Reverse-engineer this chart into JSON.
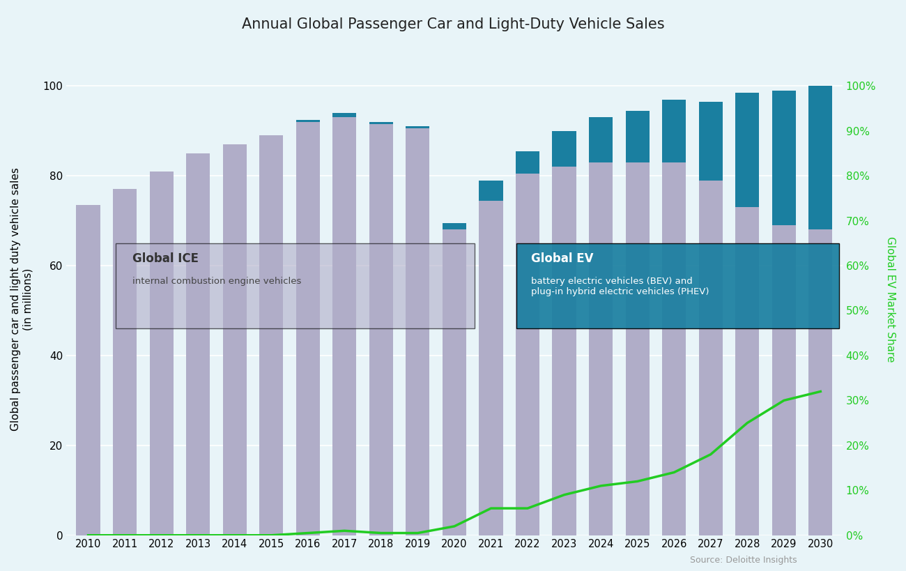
{
  "years": [
    2010,
    2011,
    2012,
    2013,
    2014,
    2015,
    2016,
    2017,
    2018,
    2019,
    2020,
    2021,
    2022,
    2023,
    2024,
    2025,
    2026,
    2027,
    2028,
    2029,
    2030
  ],
  "ice_values": [
    73.5,
    77.0,
    81.0,
    85.0,
    87.0,
    89.0,
    92.0,
    93.0,
    91.5,
    90.5,
    68.0,
    74.5,
    80.5,
    82.0,
    83.0,
    83.0,
    83.0,
    79.0,
    73.0,
    69.0,
    68.0
  ],
  "ev_values": [
    0.0,
    0.0,
    0.0,
    0.0,
    0.0,
    0.0,
    0.5,
    1.0,
    0.5,
    0.5,
    1.5,
    4.5,
    5.0,
    8.0,
    10.0,
    11.5,
    14.0,
    17.5,
    25.5,
    30.0,
    32.0
  ],
  "ev_share": [
    0.0,
    0.0,
    0.0,
    0.0,
    0.0,
    0.0,
    0.5,
    1.0,
    0.5,
    0.5,
    2.0,
    6.0,
    6.0,
    9.0,
    11.0,
    12.0,
    14.0,
    18.0,
    25.0,
    30.0,
    32.0
  ],
  "ice_color": "#b0adc8",
  "ev_color": "#1a7fa0",
  "line_color": "#22cc22",
  "background_color": "#e8f4f8",
  "title": "Annual Global Passenger Car and Light-Duty Vehicle Sales",
  "ylabel_left": "Global passenger car and light duty vehicle sales\n(in millions)",
  "ylabel_right": "Global EV Market Share",
  "source_text": "Source: Deloitte Insights",
  "annotation_ice_title": "Global ICE",
  "annotation_ice_body": "internal combustion engine vehicles",
  "annotation_ev_title": "Global EV",
  "annotation_ev_body": "battery electric vehicles (BEV) and\nplug-in hybrid electric vehicles (PHEV)",
  "ylim_left": [
    0,
    105
  ],
  "ylim_right": [
    0,
    105
  ]
}
